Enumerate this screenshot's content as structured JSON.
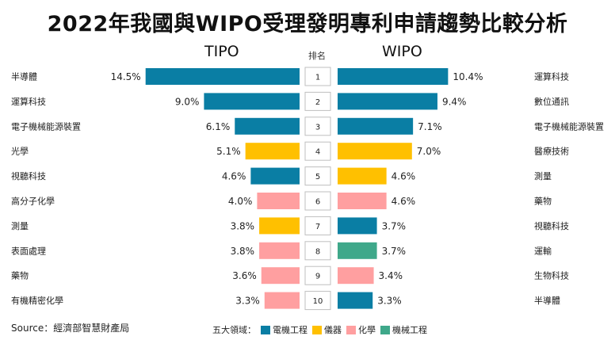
{
  "title": "2022年我國與WIPO受理發明專利申請趨勢比較分析",
  "source": "Source：經濟部智慧財產局",
  "legend": {
    "label": "五大領域：",
    "items": [
      {
        "name": "電機工程",
        "color": "#0a7ea4"
      },
      {
        "name": "儀器",
        "color": "#ffc000"
      },
      {
        "name": "化學",
        "color": "#ff9fa0"
      },
      {
        "name": "機械工程",
        "color": "#3fa88a"
      }
    ]
  },
  "chart_data": {
    "type": "bar",
    "rank_header": "排名",
    "ranks": [
      1,
      2,
      3,
      4,
      5,
      6,
      7,
      8,
      9,
      10
    ],
    "series": [
      {
        "name": "TIPO",
        "categories": [
          "半導體",
          "運算科技",
          "電子機械能源裝置",
          "光學",
          "視聽科技",
          "高分子化學",
          "測量",
          "表面處理",
          "藥物",
          "有機精密化學"
        ],
        "values": [
          14.5,
          9.0,
          6.1,
          5.1,
          4.6,
          4.0,
          3.8,
          3.8,
          3.6,
          3.3
        ],
        "value_labels": [
          "14.5%",
          "9.0%",
          "6.1%",
          "5.1%",
          "4.6%",
          "4.0%",
          "3.8%",
          "3.8%",
          "3.6%",
          "3.3%"
        ],
        "fields": [
          "電機工程",
          "電機工程",
          "電機工程",
          "儀器",
          "電機工程",
          "化學",
          "儀器",
          "化學",
          "化學",
          "化學"
        ]
      },
      {
        "name": "WIPO",
        "categories": [
          "運算科技",
          "數位通訊",
          "電子機械能源裝置",
          "醫療技術",
          "測量",
          "藥物",
          "視聽科技",
          "運輸",
          "生物科技",
          "半導體"
        ],
        "values": [
          10.4,
          9.4,
          7.1,
          7.0,
          4.6,
          4.6,
          3.7,
          3.7,
          3.4,
          3.3
        ],
        "value_labels": [
          "10.4%",
          "9.4%",
          "7.1%",
          "7.0%",
          "4.6%",
          "4.6%",
          "3.7%",
          "3.7%",
          "3.4%",
          "3.3%"
        ],
        "fields": [
          "電機工程",
          "電機工程",
          "電機工程",
          "儀器",
          "儀器",
          "化學",
          "電機工程",
          "機械工程",
          "化學",
          "電機工程"
        ]
      }
    ],
    "unit": "%"
  }
}
